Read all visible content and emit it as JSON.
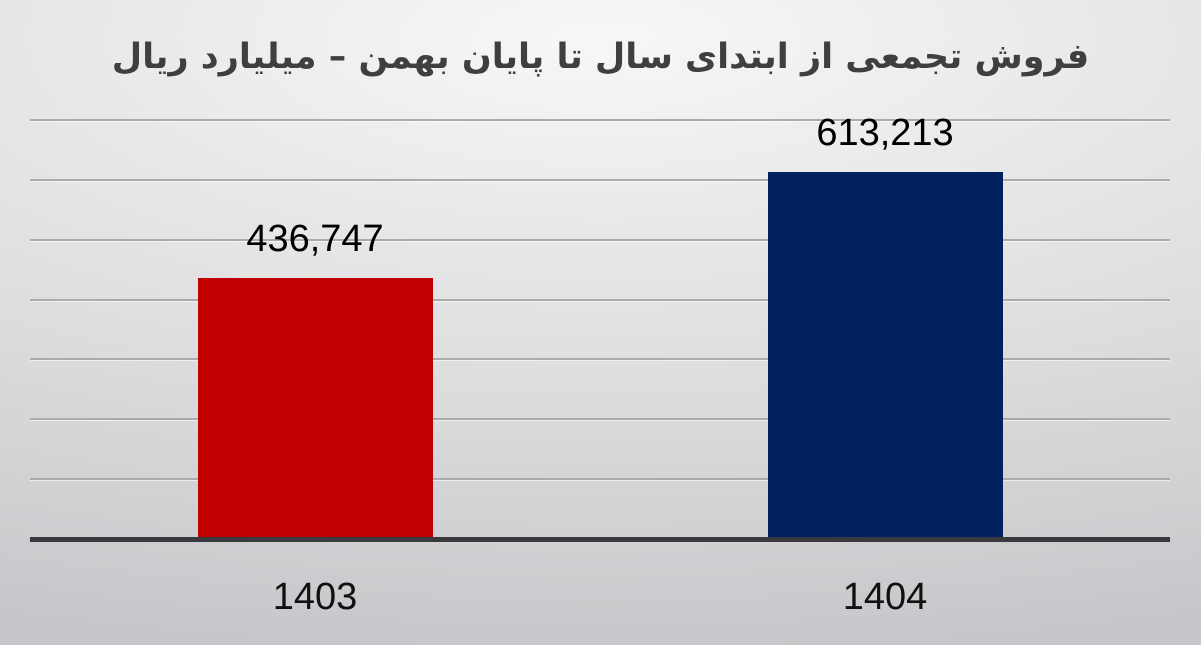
{
  "chart_data": {
    "type": "bar",
    "title": "فروش تجمعی از ابتدای سال تا پایان بهمن – میلیارد ریال",
    "categories": [
      "1403",
      "1404"
    ],
    "values": [
      436747,
      613213
    ],
    "value_labels": [
      "436,747",
      "613,213"
    ],
    "series_colors": [
      "#C00000",
      "#002060"
    ],
    "xlabel": "",
    "ylabel": "",
    "ylim": [
      0,
      700000
    ],
    "gridline_interval": 100000,
    "grid": true,
    "legend": "none",
    "y_tick_labels_visible": false,
    "direction": "rtl",
    "colors": {
      "title_text": "#3F3F3F",
      "data_label_text": "#000000",
      "category_label_text": "#111111",
      "gridline": "#ABABAE",
      "axis_line": "#3A3A3E"
    }
  }
}
